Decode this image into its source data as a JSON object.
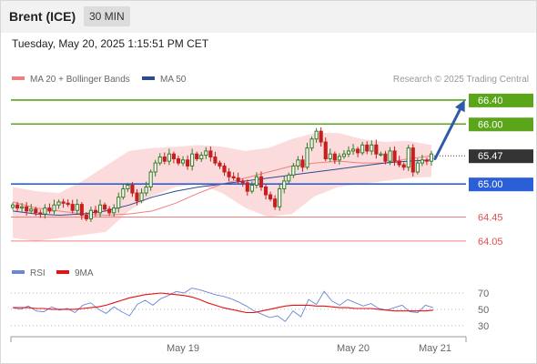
{
  "header": {
    "instrument": "Brent (ICE)",
    "timeframe": "30 MIN",
    "timestamp": "Tuesday, May 20, 2025 1:15:51 PM CET"
  },
  "colors": {
    "green": "#5aa51a",
    "blue": "#2a5fd8",
    "red_line": "#f08080",
    "up": "#2f7d25",
    "down": "#c61f1f",
    "band": "#f9cfcf",
    "ma50": "#2e4b8f",
    "arrow": "#2e5aa8",
    "rsi": "#6a86d8",
    "rsi_ma": "#e81010",
    "dark_label": "#333333"
  },
  "chart_data": [
    {
      "type": "candlestick",
      "legend": [
        {
          "label": "MA 20 + Bollinger Bands",
          "color": "#f08080"
        },
        {
          "label": "MA 50",
          "color": "#2e4b8f"
        }
      ],
      "credit": "Research © 2025 Trading Central",
      "ylim": [
        63.85,
        66.55
      ],
      "levels": [
        {
          "value": 66.4,
          "label": "66.40",
          "style": "green"
        },
        {
          "value": 66.0,
          "label": "66.00",
          "style": "green"
        },
        {
          "value": 65.0,
          "label": "65.00",
          "style": "blue"
        },
        {
          "value": 64.45,
          "label": "64.45",
          "style": "red"
        },
        {
          "value": 64.05,
          "label": "64.05",
          "style": "red"
        }
      ],
      "last_price": {
        "value": 65.47,
        "label": "65.47"
      },
      "x_labels": [
        "May 19",
        "May 20",
        "May 21"
      ],
      "closes": [
        64.65,
        64.6,
        64.62,
        64.55,
        64.58,
        64.52,
        64.5,
        64.6,
        64.55,
        64.65,
        64.7,
        64.68,
        64.66,
        64.56,
        64.66,
        64.48,
        64.42,
        64.56,
        64.52,
        64.65,
        64.58,
        64.52,
        64.6,
        64.78,
        64.92,
        64.98,
        64.85,
        64.72,
        64.85,
        64.95,
        65.2,
        65.35,
        65.45,
        65.38,
        65.5,
        65.42,
        65.35,
        65.4,
        65.3,
        65.5,
        65.42,
        65.48,
        65.55,
        65.45,
        65.35,
        65.3,
        65.2,
        65.12,
        65.1,
        65.05,
        65.02,
        64.88,
        64.98,
        65.12,
        64.95,
        64.82,
        64.75,
        64.62,
        64.92,
        65.05,
        65.15,
        65.3,
        65.4,
        65.28,
        65.6,
        65.75,
        65.88,
        65.7,
        65.42,
        65.5,
        65.4,
        65.46,
        65.5,
        65.55,
        65.58,
        65.52,
        65.65,
        65.55,
        65.65,
        65.5,
        65.5,
        65.38,
        65.55,
        65.38,
        65.32,
        65.28,
        65.6,
        65.2,
        65.35,
        65.4,
        65.38,
        65.5
      ],
      "bollinger_mid": [
        64.7,
        64.6,
        64.55,
        64.5,
        64.48,
        64.5,
        64.55,
        64.68,
        64.85,
        65.0,
        65.1,
        65.2,
        65.3,
        65.35,
        65.38,
        65.35,
        65.35,
        65.42,
        65.47
      ],
      "bollinger_upper": [
        64.95,
        64.88,
        64.85,
        65.05,
        65.3,
        65.55,
        65.6,
        65.62,
        65.65,
        65.62,
        65.55,
        65.6,
        65.75,
        65.85,
        65.85,
        65.75,
        65.7,
        65.72,
        65.65
      ],
      "bollinger_lower": [
        64.1,
        64.05,
        64.1,
        64.15,
        64.2,
        64.55,
        64.8,
        64.95,
        65.0,
        64.85,
        64.6,
        64.45,
        64.5,
        64.8,
        64.95,
        65.0,
        65.05,
        65.1,
        65.12
      ],
      "ma50": [
        64.55,
        64.5,
        64.48,
        64.5,
        64.55,
        64.65,
        64.78,
        64.88,
        64.95,
        65.0,
        65.05,
        65.1,
        65.15,
        65.2,
        65.25,
        65.3,
        65.35,
        65.38,
        65.4
      ]
    },
    {
      "type": "line",
      "legend": [
        {
          "label": "RSI",
          "color": "#6a86d8"
        },
        {
          "label": "9MA",
          "color": "#e81010"
        }
      ],
      "ylim": [
        22,
        80
      ],
      "y_ticks": [
        70,
        50,
        30
      ],
      "rsi": [
        52,
        50,
        54,
        48,
        47,
        53,
        49,
        51,
        46,
        55,
        58,
        50,
        45,
        53,
        47,
        42,
        56,
        61,
        55,
        63,
        67,
        72,
        70,
        76,
        74,
        71,
        68,
        66,
        63,
        59,
        54,
        48,
        44,
        40,
        42,
        35,
        48,
        41,
        62,
        56,
        72,
        60,
        55,
        62,
        58,
        54,
        57,
        51,
        49,
        52,
        55,
        47,
        46,
        55,
        52
      ],
      "ma9": [
        52,
        52,
        52,
        51,
        51,
        50,
        50,
        50,
        50,
        51,
        52,
        53,
        55,
        58,
        61,
        64,
        66,
        68,
        69,
        70,
        69,
        68,
        67,
        65,
        62,
        58,
        55,
        52,
        50,
        48,
        46,
        46,
        48,
        50,
        52,
        54,
        55,
        55,
        55,
        54,
        54,
        53,
        52,
        52,
        51,
        51,
        51,
        50,
        49,
        48,
        48,
        48,
        48,
        48,
        49
      ]
    }
  ]
}
